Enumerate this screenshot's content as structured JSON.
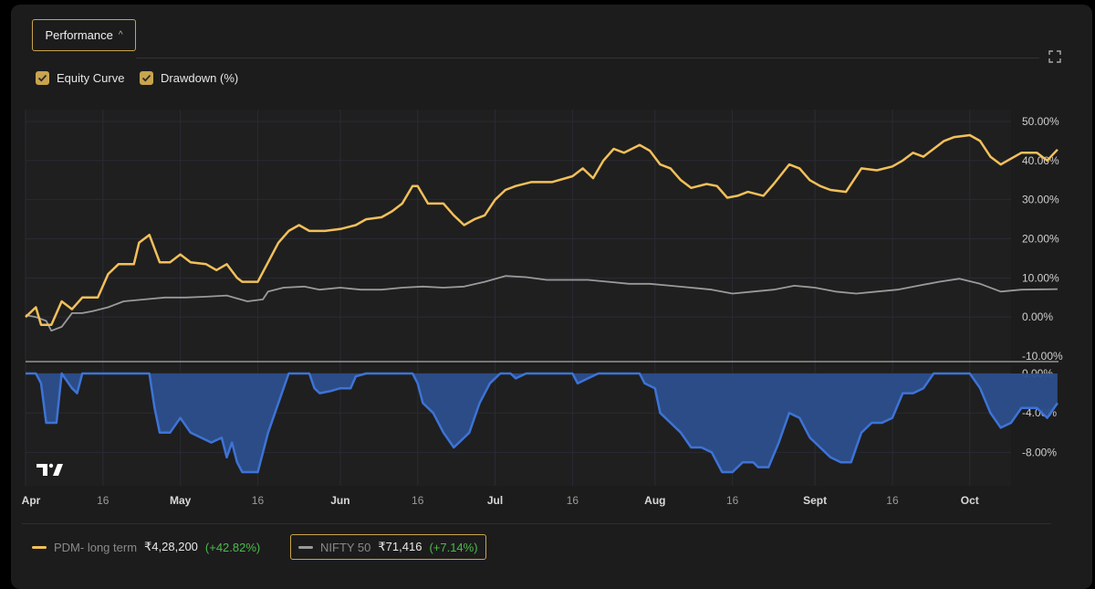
{
  "toolbar": {
    "performance_label": "Performance",
    "caret": "^"
  },
  "toggles": [
    {
      "label": "Equity Curve",
      "checked": true
    },
    {
      "label": "Drawdown (%)",
      "checked": true
    }
  ],
  "colors": {
    "accent": "#c9a44e",
    "equity": "#f2c05a",
    "nifty": "#9a9a9a",
    "drawdown_fill": "#2c4f8c",
    "drawdown_line": "#3e73d6",
    "positive": "#4cba4c"
  },
  "legend": [
    {
      "name": "PDM- long term",
      "value": "₹4,28,200",
      "change": "(+42.82%)",
      "color": "#f2c05a"
    },
    {
      "name": "NIFTY 50",
      "value": "₹71,416",
      "change": "(+7.14%)",
      "color": "#9a9a9a"
    }
  ],
  "chart_data": [
    {
      "type": "line",
      "x_range": [
        "2023-04-01",
        "2023-10-09"
      ],
      "x_tick_labels": [
        "Apr",
        "16",
        "May",
        "16",
        "Jun",
        "16",
        "Jul",
        "16",
        "Aug",
        "16",
        "Sept",
        "16",
        "Oct"
      ],
      "ylim": [
        -10,
        55
      ],
      "y_tick_labels": [
        "50.00%",
        "40.00%",
        "30.00%",
        "20.00%",
        "10.00%",
        "0.00%",
        "-10.00%"
      ],
      "grid": true,
      "series": [
        {
          "name": "PDM- long term",
          "color": "#f2c05a",
          "points": [
            [
              "2023-04-01",
              0
            ],
            [
              "2023-04-03",
              2.5
            ],
            [
              "2023-04-04",
              -2
            ],
            [
              "2023-04-06",
              -2
            ],
            [
              "2023-04-08",
              4
            ],
            [
              "2023-04-10",
              2
            ],
            [
              "2023-04-12",
              5
            ],
            [
              "2023-04-15",
              5
            ],
            [
              "2023-04-17",
              11
            ],
            [
              "2023-04-19",
              13.5
            ],
            [
              "2023-04-22",
              13.5
            ],
            [
              "2023-04-23",
              19
            ],
            [
              "2023-04-25",
              21
            ],
            [
              "2023-04-27",
              14
            ],
            [
              "2023-04-29",
              14
            ],
            [
              "2023-05-01",
              16
            ],
            [
              "2023-05-03",
              14
            ],
            [
              "2023-05-06",
              13.5
            ],
            [
              "2023-05-08",
              12
            ],
            [
              "2023-05-10",
              13.5
            ],
            [
              "2023-05-12",
              10
            ],
            [
              "2023-05-13",
              9
            ],
            [
              "2023-05-16",
              9
            ],
            [
              "2023-05-18",
              14
            ],
            [
              "2023-05-20",
              19
            ],
            [
              "2023-05-22",
              22
            ],
            [
              "2023-05-24",
              23.5
            ],
            [
              "2023-05-26",
              22
            ],
            [
              "2023-05-29",
              22
            ],
            [
              "2023-06-01",
              22.5
            ],
            [
              "2023-06-04",
              23.5
            ],
            [
              "2023-06-06",
              25
            ],
            [
              "2023-06-09",
              25.5
            ],
            [
              "2023-06-11",
              27
            ],
            [
              "2023-06-13",
              29
            ],
            [
              "2023-06-15",
              33.5
            ],
            [
              "2023-06-16",
              33.5
            ],
            [
              "2023-06-18",
              29
            ],
            [
              "2023-06-21",
              29
            ],
            [
              "2023-06-23",
              26
            ],
            [
              "2023-06-25",
              23.5
            ],
            [
              "2023-06-27",
              25
            ],
            [
              "2023-06-29",
              26
            ],
            [
              "2023-07-01",
              30
            ],
            [
              "2023-07-03",
              32.5
            ],
            [
              "2023-07-05",
              33.5
            ],
            [
              "2023-07-08",
              34.5
            ],
            [
              "2023-07-12",
              34.5
            ],
            [
              "2023-07-16",
              36
            ],
            [
              "2023-07-18",
              38
            ],
            [
              "2023-07-20",
              35.5
            ],
            [
              "2023-07-22",
              40
            ],
            [
              "2023-07-24",
              43
            ],
            [
              "2023-07-26",
              42
            ],
            [
              "2023-07-29",
              44
            ],
            [
              "2023-07-31",
              42.5
            ],
            [
              "2023-08-02",
              39
            ],
            [
              "2023-08-04",
              38
            ],
            [
              "2023-08-06",
              35
            ],
            [
              "2023-08-08",
              33
            ],
            [
              "2023-08-11",
              34
            ],
            [
              "2023-08-13",
              33.5
            ],
            [
              "2023-08-15",
              30.5
            ],
            [
              "2023-08-17",
              31
            ],
            [
              "2023-08-19",
              32
            ],
            [
              "2023-08-22",
              31
            ],
            [
              "2023-08-24",
              34
            ],
            [
              "2023-08-27",
              39
            ],
            [
              "2023-08-29",
              38
            ],
            [
              "2023-08-31",
              35
            ],
            [
              "2023-09-02",
              33.5
            ],
            [
              "2023-09-04",
              32.5
            ],
            [
              "2023-09-07",
              32
            ],
            [
              "2023-09-10",
              38
            ],
            [
              "2023-09-13",
              37.5
            ],
            [
              "2023-09-16",
              38.5
            ],
            [
              "2023-09-18",
              40
            ],
            [
              "2023-09-20",
              42
            ],
            [
              "2023-09-22",
              41
            ],
            [
              "2023-09-24",
              43
            ],
            [
              "2023-09-26",
              45
            ],
            [
              "2023-09-28",
              46
            ],
            [
              "2023-10-01",
              46.5
            ],
            [
              "2023-10-03",
              45
            ],
            [
              "2023-10-05",
              41
            ],
            [
              "2023-10-07",
              39
            ],
            [
              "2023-10-09",
              40.5
            ],
            [
              "2023-10-11",
              42
            ],
            [
              "2023-10-14",
              42
            ],
            [
              "2023-10-16",
              40
            ],
            [
              "2023-10-18",
              42.8
            ]
          ]
        },
        {
          "name": "NIFTY 50",
          "color": "#9a9a9a",
          "points": [
            [
              "2023-04-01",
              0.5
            ],
            [
              "2023-04-03",
              0
            ],
            [
              "2023-04-05",
              -1
            ],
            [
              "2023-04-06",
              -3.5
            ],
            [
              "2023-04-08",
              -2.5
            ],
            [
              "2023-04-10",
              1
            ],
            [
              "2023-04-12",
              1
            ],
            [
              "2023-04-14",
              1.5
            ],
            [
              "2023-04-17",
              2.5
            ],
            [
              "2023-04-20",
              4
            ],
            [
              "2023-04-24",
              4.5
            ],
            [
              "2023-04-28",
              5
            ],
            [
              "2023-05-02",
              5
            ],
            [
              "2023-05-06",
              5.2
            ],
            [
              "2023-05-10",
              5.5
            ],
            [
              "2023-05-14",
              4
            ],
            [
              "2023-05-17",
              4.5
            ],
            [
              "2023-05-18",
              6.5
            ],
            [
              "2023-05-21",
              7.5
            ],
            [
              "2023-05-25",
              7.8
            ],
            [
              "2023-05-28",
              7
            ],
            [
              "2023-06-01",
              7.5
            ],
            [
              "2023-06-05",
              7
            ],
            [
              "2023-06-09",
              7
            ],
            [
              "2023-06-13",
              7.5
            ],
            [
              "2023-06-17",
              7.8
            ],
            [
              "2023-06-21",
              7.5
            ],
            [
              "2023-06-25",
              7.8
            ],
            [
              "2023-06-29",
              9
            ],
            [
              "2023-07-03",
              10.5
            ],
            [
              "2023-07-07",
              10.2
            ],
            [
              "2023-07-11",
              9.5
            ],
            [
              "2023-07-15",
              9.5
            ],
            [
              "2023-07-19",
              9.5
            ],
            [
              "2023-07-23",
              9
            ],
            [
              "2023-07-27",
              8.5
            ],
            [
              "2023-07-31",
              8.5
            ],
            [
              "2023-08-04",
              8
            ],
            [
              "2023-08-08",
              7.5
            ],
            [
              "2023-08-12",
              7
            ],
            [
              "2023-08-16",
              6
            ],
            [
              "2023-08-20",
              6.5
            ],
            [
              "2023-08-24",
              7
            ],
            [
              "2023-08-28",
              8
            ],
            [
              "2023-09-01",
              7.5
            ],
            [
              "2023-09-05",
              6.5
            ],
            [
              "2023-09-09",
              6
            ],
            [
              "2023-09-13",
              6.5
            ],
            [
              "2023-09-17",
              7
            ],
            [
              "2023-09-21",
              8
            ],
            [
              "2023-09-25",
              9
            ],
            [
              "2023-09-29",
              9.8
            ],
            [
              "2023-10-03",
              8.5
            ],
            [
              "2023-10-07",
              6.5
            ],
            [
              "2023-10-11",
              7
            ],
            [
              "2023-10-18",
              7.14
            ]
          ]
        }
      ]
    },
    {
      "type": "area",
      "x_range": [
        "2023-04-01",
        "2023-10-09"
      ],
      "ylim": [
        -10,
        0
      ],
      "y_tick_labels": [
        "0.00%",
        "-4.00%",
        "-8.00%"
      ],
      "grid": true,
      "series": [
        {
          "name": "Drawdown (%)",
          "color": "#3e73d6",
          "points": [
            [
              "2023-04-01",
              0
            ],
            [
              "2023-04-03",
              0
            ],
            [
              "2023-04-04",
              -1
            ],
            [
              "2023-04-05",
              -5
            ],
            [
              "2023-04-07",
              -5
            ],
            [
              "2023-04-08",
              0
            ],
            [
              "2023-04-10",
              -1.5
            ],
            [
              "2023-04-11",
              -2
            ],
            [
              "2023-04-12",
              0
            ],
            [
              "2023-04-25",
              0
            ],
            [
              "2023-04-26",
              -3.5
            ],
            [
              "2023-04-27",
              -6
            ],
            [
              "2023-04-29",
              -6
            ],
            [
              "2023-05-01",
              -4.5
            ],
            [
              "2023-05-03",
              -6
            ],
            [
              "2023-05-05",
              -6.5
            ],
            [
              "2023-05-07",
              -7
            ],
            [
              "2023-05-09",
              -6.5
            ],
            [
              "2023-05-10",
              -8.5
            ],
            [
              "2023-05-11",
              -7
            ],
            [
              "2023-05-12",
              -9
            ],
            [
              "2023-05-13",
              -10
            ],
            [
              "2023-05-16",
              -10
            ],
            [
              "2023-05-18",
              -6
            ],
            [
              "2023-05-20",
              -3
            ],
            [
              "2023-05-22",
              0
            ],
            [
              "2023-05-26",
              0
            ],
            [
              "2023-05-27",
              -1.5
            ],
            [
              "2023-05-28",
              -2
            ],
            [
              "2023-05-30",
              -1.8
            ],
            [
              "2023-06-01",
              -1.5
            ],
            [
              "2023-06-03",
              -1.5
            ],
            [
              "2023-06-04",
              -0.3
            ],
            [
              "2023-06-06",
              0
            ],
            [
              "2023-06-15",
              0
            ],
            [
              "2023-06-16",
              -1
            ],
            [
              "2023-06-17",
              -3
            ],
            [
              "2023-06-19",
              -4
            ],
            [
              "2023-06-21",
              -6
            ],
            [
              "2023-06-23",
              -7.5
            ],
            [
              "2023-06-24",
              -7
            ],
            [
              "2023-06-26",
              -6
            ],
            [
              "2023-06-28",
              -3
            ],
            [
              "2023-06-30",
              -1
            ],
            [
              "2023-07-02",
              0
            ],
            [
              "2023-07-04",
              0
            ],
            [
              "2023-07-05",
              -0.5
            ],
            [
              "2023-07-07",
              0
            ],
            [
              "2023-07-16",
              0
            ],
            [
              "2023-07-17",
              -1
            ],
            [
              "2023-07-19",
              -0.5
            ],
            [
              "2023-07-21",
              0
            ],
            [
              "2023-07-29",
              0
            ],
            [
              "2023-07-30",
              -1
            ],
            [
              "2023-08-01",
              -1.5
            ],
            [
              "2023-08-02",
              -4
            ],
            [
              "2023-08-04",
              -5
            ],
            [
              "2023-08-06",
              -6
            ],
            [
              "2023-08-08",
              -7.5
            ],
            [
              "2023-08-10",
              -7.5
            ],
            [
              "2023-08-12",
              -8
            ],
            [
              "2023-08-14",
              -10
            ],
            [
              "2023-08-16",
              -10
            ],
            [
              "2023-08-18",
              -9
            ],
            [
              "2023-08-20",
              -9
            ],
            [
              "2023-08-21",
              -9.5
            ],
            [
              "2023-08-23",
              -9.5
            ],
            [
              "2023-08-25",
              -7
            ],
            [
              "2023-08-27",
              -4
            ],
            [
              "2023-08-29",
              -4.5
            ],
            [
              "2023-08-31",
              -6.5
            ],
            [
              "2023-09-02",
              -7.5
            ],
            [
              "2023-09-04",
              -8.5
            ],
            [
              "2023-09-06",
              -9
            ],
            [
              "2023-09-08",
              -9
            ],
            [
              "2023-09-10",
              -6
            ],
            [
              "2023-09-12",
              -5
            ],
            [
              "2023-09-14",
              -5
            ],
            [
              "2023-09-16",
              -4.5
            ],
            [
              "2023-09-18",
              -2
            ],
            [
              "2023-09-20",
              -2
            ],
            [
              "2023-09-22",
              -1.5
            ],
            [
              "2023-09-24",
              0
            ],
            [
              "2023-09-28",
              0
            ],
            [
              "2023-10-01",
              0
            ],
            [
              "2023-10-03",
              -1.5
            ],
            [
              "2023-10-05",
              -4
            ],
            [
              "2023-10-07",
              -5.5
            ],
            [
              "2023-10-09",
              -5
            ],
            [
              "2023-10-11",
              -3.5
            ],
            [
              "2023-10-14",
              -3.5
            ],
            [
              "2023-10-16",
              -4.5
            ],
            [
              "2023-10-18",
              -3
            ]
          ]
        }
      ]
    }
  ]
}
